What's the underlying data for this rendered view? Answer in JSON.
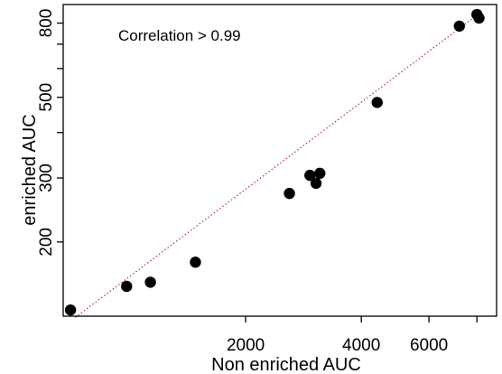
{
  "chart_data": {
    "type": "scatter",
    "title": "",
    "xlabel": "Non enriched AUC",
    "ylabel": "enriched AUC",
    "annotation": "Correlation > 0.99",
    "x_scale": "log",
    "y_scale": "log",
    "xlim": [
      670,
      9000
    ],
    "ylim": [
      125,
      900
    ],
    "x_ticks": [
      {
        "value": 2000,
        "label": "2000"
      },
      {
        "value": 4000,
        "label": "4000"
      },
      {
        "value": 6000,
        "label": "6000"
      },
      {
        "value": 8000,
        "label": ""
      }
    ],
    "y_ticks": [
      {
        "value": 200,
        "label": "200"
      },
      {
        "value": 300,
        "label": "300"
      },
      {
        "value": 400,
        "label": ""
      },
      {
        "value": 500,
        "label": "500"
      },
      {
        "value": 600,
        "label": ""
      },
      {
        "value": 700,
        "label": ""
      },
      {
        "value": 800,
        "label": "800"
      }
    ],
    "points": [
      {
        "x": 700,
        "y": 130
      },
      {
        "x": 980,
        "y": 151
      },
      {
        "x": 1130,
        "y": 155
      },
      {
        "x": 1480,
        "y": 176
      },
      {
        "x": 2600,
        "y": 272
      },
      {
        "x": 2940,
        "y": 305
      },
      {
        "x": 3050,
        "y": 290
      },
      {
        "x": 3120,
        "y": 309
      },
      {
        "x": 4400,
        "y": 484
      },
      {
        "x": 7200,
        "y": 785
      },
      {
        "x": 8000,
        "y": 845
      },
      {
        "x": 8100,
        "y": 826
      }
    ],
    "fit_line": {
      "x": [
        720,
        8200
      ],
      "y": [
        124,
        858
      ]
    },
    "grid": false,
    "colors": {
      "points": "#000000",
      "fit_line": "#b03040",
      "axis": "#000000"
    }
  }
}
